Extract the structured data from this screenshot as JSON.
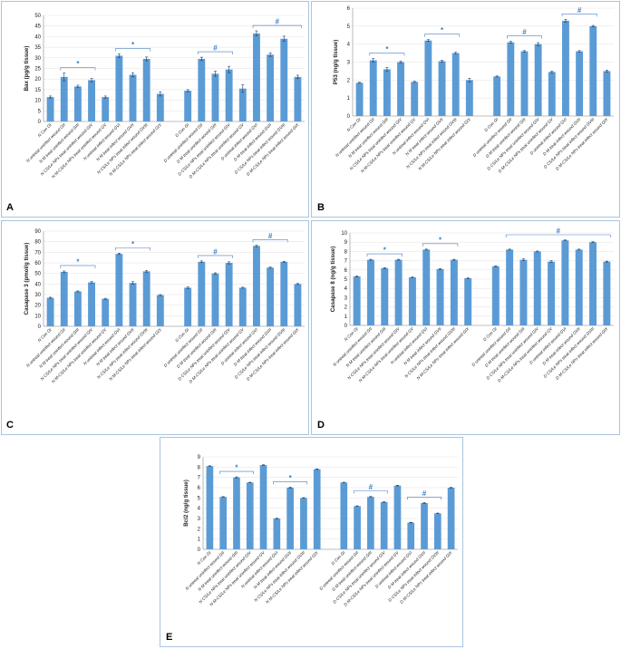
{
  "panels": [
    {
      "id": "a",
      "letter": "A"
    },
    {
      "id": "b",
      "letter": "B"
    },
    {
      "id": "c",
      "letter": "C"
    },
    {
      "id": "d",
      "letter": "D"
    },
    {
      "id": "e",
      "letter": "E"
    }
  ],
  "chart_data": [
    {
      "type": "bar",
      "panel": "A",
      "ylabel": "Bax (pg/g tissue)",
      "ylim": [
        0,
        50
      ],
      "ystep": 5,
      "categories": [
        "N Con GI",
        "N untreat uninfect wound GII",
        "N M treat uninfect wound GIII",
        "N CS/Le NPs treat uninfect wound GIV",
        "N M-CS/Le NPs treat uninfect wound GV",
        "N untreat infect wound GVI",
        "N M treat infect wound GVII",
        "N CS/Le NPs treat infect wound GVIII",
        "N M-CS/Le NPs treat infect wound GIX",
        "",
        "D Con GI",
        "D untreat uninfect wound GII",
        "D M treat uninfect wound GIII",
        "D CS/Le NPs treat uninfect wound GIV",
        "D M-CS/Le NPs treat uninfect wound GV",
        "D untreat infect wound GVI",
        "D M treat infect wound GVII",
        "D CS/Le NPs treat infect wound GVIII",
        "D M-CS/Le NPs treat infect wound GIX"
      ],
      "values": [
        11.5,
        21,
        16.5,
        19.5,
        11.5,
        31,
        22,
        29.5,
        13,
        null,
        14.5,
        29.5,
        22.5,
        24.5,
        15.5,
        41.5,
        31.5,
        39,
        21
      ],
      "errors": [
        0.5,
        1.8,
        0.6,
        0.8,
        0.5,
        0.8,
        1.0,
        0.9,
        1.0,
        null,
        0.5,
        0.8,
        1.2,
        1.5,
        1.8,
        1.2,
        0.8,
        1.2,
        0.8
      ],
      "brackets": [
        {
          "from": 1,
          "to": 3,
          "label": "*"
        },
        {
          "from": 5,
          "to": 7,
          "label": "*"
        },
        {
          "from": 11,
          "to": 13,
          "label": "#"
        },
        {
          "from": 15,
          "to": 18,
          "label": "#"
        }
      ]
    },
    {
      "type": "bar",
      "panel": "B",
      "ylabel": "P53 (ng/g tissue)",
      "ylim": [
        0,
        6
      ],
      "ystep": 1,
      "categories": [
        "N Con GI",
        "N untreat uninfect wound GII",
        "N M treat uninfect wound GIII",
        "N CS/Le NPs treat uninfect wound GIV",
        "N M-CS/Le NPs treat uninfect wound GV",
        "N untreat infect wound GVI",
        "N M treat infect wound GVII",
        "N CS/Le NPs treat infect wound GVIII",
        "N M-CS/Le NPs treat infect wound GIX",
        "",
        "D Con GI",
        "D untreat uninfect wound GII",
        "D M treat uninfect wound GIII",
        "D CS/Le NPs treat uninfect wound GIV",
        "D M-CS/Le NPs treat uninfect wound GV",
        "D untreat infect wound GVI",
        "D M treat infect wound GVII",
        "D CS/Le NPs treat infect wound GVIII",
        "D M-CS/Le NPs treat infect wound GIX"
      ],
      "values": [
        1.85,
        3.1,
        2.6,
        3.0,
        1.9,
        4.2,
        3.05,
        3.5,
        2.0,
        null,
        2.2,
        4.1,
        3.6,
        4.0,
        2.45,
        5.3,
        3.6,
        5.0,
        2.5
      ],
      "errors": [
        0.03,
        0.1,
        0.1,
        0.05,
        0.03,
        0.05,
        0.05,
        0.05,
        0.1,
        null,
        0.03,
        0.05,
        0.04,
        0.08,
        0.05,
        0.08,
        0.04,
        0.04,
        0.05
      ],
      "brackets": [
        {
          "from": 1,
          "to": 3,
          "label": "*"
        },
        {
          "from": 5,
          "to": 7,
          "label": "*"
        },
        {
          "from": 11,
          "to": 13,
          "label": "#"
        },
        {
          "from": 15,
          "to": 17,
          "label": "#"
        }
      ]
    },
    {
      "type": "bar",
      "panel": "C",
      "ylabel": "Casapase 3 (pmol/g tissue)",
      "ylim": [
        0,
        90
      ],
      "ystep": 10,
      "categories": [
        "N Con GI",
        "N untreat uninfect wound GII",
        "N M treat uninfect wound GIII",
        "N CS/Le NPs treat uninfect wound GIV",
        "N M-CS/Le NPs treat uninfect wound GV",
        "N untreat infect wound GVI",
        "N M treat infect wound GVII",
        "N CS/Le NPs treat infect wound GVIII",
        "N M-CS/Le NPs treat infect wound GIX",
        "",
        "D Con GI",
        "D untreat uninfect wound GII",
        "D M treat uninfect wound GIII",
        "D CS/Le NPs treat uninfect wound GIV",
        "D M-CS/Le NPs treat uninfect wound GV",
        "D untreat infect wound GVI",
        "D M treat infect wound GVII",
        "D CS/Le NPs treat infect wound GVIII",
        "D M-CS/Le NPs treat infect wound GIX"
      ],
      "values": [
        27,
        51.5,
        33,
        41.5,
        26,
        68.5,
        41,
        52,
        29.5,
        null,
        36.5,
        61,
        50,
        60,
        36.5,
        76,
        55.5,
        61,
        40
      ],
      "errors": [
        0.5,
        0.8,
        0.5,
        0.8,
        0.5,
        0.6,
        1.2,
        0.8,
        0.5,
        null,
        1.0,
        0.8,
        0.6,
        1.0,
        0.5,
        0.8,
        0.5,
        0.5,
        0.5
      ],
      "brackets": [
        {
          "from": 1,
          "to": 3,
          "label": "*"
        },
        {
          "from": 5,
          "to": 7,
          "label": "*"
        },
        {
          "from": 11,
          "to": 13,
          "label": "#"
        },
        {
          "from": 15,
          "to": 17,
          "label": "#"
        }
      ]
    },
    {
      "type": "bar",
      "panel": "D",
      "ylabel": "Casapase 8 (ng/g tissue)",
      "ylim": [
        0,
        10
      ],
      "ystep": 1,
      "categories": [
        "N Con GI",
        "N untreat uninfect wound GII",
        "N M treat uninfect wound GIII",
        "N CS/Le NPs treat uninfect wound GIV",
        "N M-CS/Le NPs treat uninfect wound GV",
        "N untreat infect wound GVI",
        "N M treat infect wound GVII",
        "N CS/Le NPs treat infect wound GVIII",
        "N M-CS/Le NPs treat infect wound GIX",
        "",
        "D Con GI",
        "D untreat uninfect wound GII",
        "D M treat uninfect wound GIII",
        "D CS/Le NPs treat uninfect wound GIV",
        "D M-CS/Le NPs treat uninfect wound GV",
        "D untreat infect wound GVI",
        "D M treat infect wound GVII",
        "D CS/Le NPs treat infect wound GVIII",
        "D M-CS/Le NPs treat infect wound GIX"
      ],
      "values": [
        5.3,
        7.1,
        6.2,
        7.1,
        5.2,
        8.2,
        6.1,
        7.1,
        5.1,
        null,
        6.4,
        8.2,
        7.1,
        8.0,
        6.9,
        9.2,
        8.2,
        9.0,
        6.9
      ],
      "errors": [
        0.05,
        0.05,
        0.05,
        0.05,
        0.05,
        0.05,
        0.05,
        0.05,
        0.05,
        null,
        0.05,
        0.05,
        0.1,
        0.05,
        0.1,
        0.05,
        0.05,
        0.05,
        0.05
      ],
      "brackets": [
        {
          "from": 1,
          "to": 3,
          "label": "*"
        },
        {
          "from": 5,
          "to": 7,
          "label": "*"
        },
        {
          "from": 11,
          "to": 18,
          "label": "#"
        }
      ]
    },
    {
      "type": "bar",
      "panel": "E",
      "ylabel": "Bcl2 (ng/g tissue)",
      "ylim": [
        0,
        9
      ],
      "ystep": 1,
      "categories": [
        "N Con GI",
        "N untreat uninfect wound GII",
        "N M treat uninfect wound GIII",
        "N CS/Le NPs treat uninfect wound GIV",
        "N M-CS/Le NPs treat uninfect wound GV",
        "N untreat infect wound GVI",
        "N M treat infect wound GVII",
        "N CS/Le NPs treat infect wound GVIII",
        "N M-CS/Le NPs treat infect wound GIX",
        "",
        "D Con GI",
        "D untreat uninfect wound GII",
        "D M treat uninfect wound GIII",
        "D CS/Le NPs treat uninfect wound GIV",
        "D M-CS/Le NPs treat uninfect wound GV",
        "D untreat infect wound GVI",
        "D M treat infect wound GVII",
        "D CS/Le NPs treat infect wound GVIII",
        "D M-CS/Le NPs treat infect wound GIX"
      ],
      "values": [
        8.1,
        5.1,
        7.0,
        6.5,
        8.2,
        3.0,
        6.0,
        5.0,
        7.8,
        null,
        6.5,
        4.2,
        5.1,
        4.6,
        6.2,
        2.6,
        4.5,
        3.5,
        6.0
      ],
      "errors": [
        0.03,
        0.03,
        0.05,
        0.03,
        0.03,
        0.03,
        0.05,
        0.03,
        0.03,
        null,
        0.03,
        0.03,
        0.05,
        0.03,
        0.03,
        0.03,
        0.05,
        0.03,
        0.03
      ],
      "brackets": [
        {
          "from": 1,
          "to": 3,
          "label": "*"
        },
        {
          "from": 5,
          "to": 7,
          "label": "*"
        },
        {
          "from": 11,
          "to": 13,
          "label": "#"
        },
        {
          "from": 15,
          "to": 17,
          "label": "#"
        }
      ]
    }
  ],
  "colors": {
    "bar": "#5b9bd5",
    "error": "#1f3f66",
    "bracket": "#4a7fc0",
    "axis": "#8c8c8c",
    "grid": "#d9d9d9"
  }
}
